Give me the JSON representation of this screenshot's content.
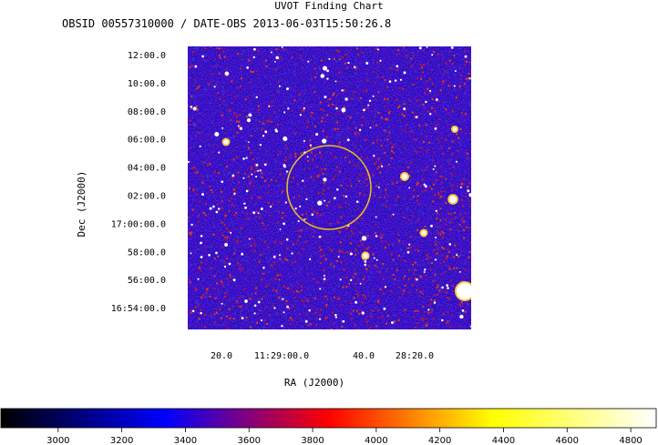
{
  "chart_data": {
    "type": "heatmap",
    "title": "UVOT Finding Chart",
    "subtitle": "OBSID 00557310000 / DATE-OBS 2013-06-03T15:50:26.8",
    "xlabel": "RA (J2000)",
    "ylabel": "Dec (J2000)",
    "x_tick_labels": [
      "20.0",
      "11:29:00.0",
      "40.0",
      "28:20.0"
    ],
    "y_tick_labels": [
      "12:00.0",
      "10:00.0",
      "08:00.0",
      "06:00.0",
      "04:00.0",
      "02:00.0",
      "17:00:00.0",
      "58:00.0",
      "56:00.0",
      "16:54:00.0"
    ],
    "colorbar": {
      "ticks": [
        3000,
        3200,
        3400,
        3600,
        3800,
        4000,
        4200,
        4400,
        4600,
        4800
      ],
      "range": [
        2820,
        4880
      ],
      "colors": [
        "#000000",
        "#0000ff",
        "#ff0000",
        "#ffff00",
        "#ffffff"
      ]
    },
    "region_circle_color": "#f0c020",
    "image_palette": {
      "background": "#2a2ab8",
      "noise": [
        "#1c1caa",
        "#3434d0",
        "#5020a8",
        "#a0185a",
        "#d02020",
        "#e84010"
      ],
      "stars": "#ffffff"
    }
  }
}
